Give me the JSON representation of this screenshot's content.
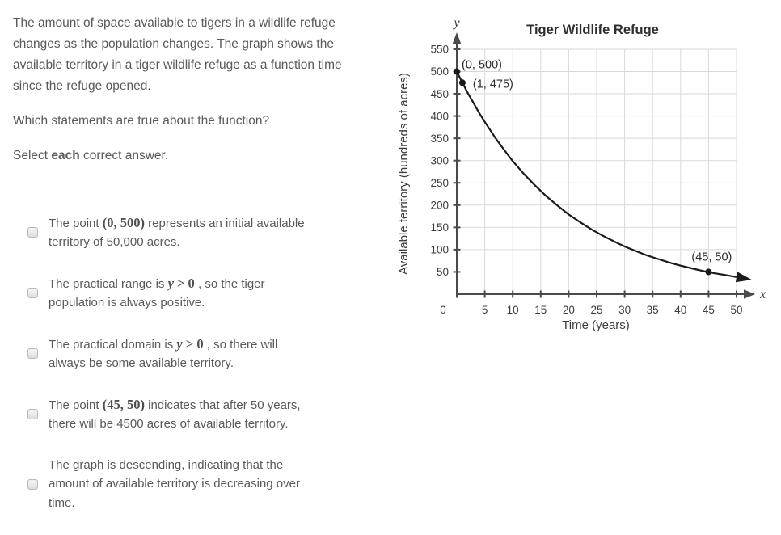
{
  "question": {
    "intro": "The amount of space available to tigers in a wildlife refuge changes as the population changes. The graph shows the available territory in a tiger wildlife refuge as a function time since the refuge opened.",
    "prompt": "Which statements are true about the function?",
    "select_prefix": "Select ",
    "select_bold": "each",
    "select_suffix": " correct answer."
  },
  "options": [
    {
      "pre": "The point ",
      "math": "(0, 500)",
      "post": " represents an initial available territory of 50,000 acres.",
      "checked": false
    },
    {
      "pre": "The practical range is ",
      "math_var": "y",
      "math_rest": " > 0",
      "post": " , so the tiger population is always positive.",
      "checked": false
    },
    {
      "pre": "The practical domain is ",
      "math_var": "y",
      "math_rest": " > 0",
      "post": " , so there will always be some available territory.",
      "checked": false
    },
    {
      "pre": "The point ",
      "math": "(45, 50)",
      "post": " indicates that after 50 years, there will be 4500 acres of available territory.",
      "checked": false
    },
    {
      "pre": "The graph is descending, indicating that the amount of available territory is decreasing over time.",
      "checked": false
    }
  ],
  "chart_data": {
    "type": "line",
    "title": "Tiger Wildlife Refuge",
    "xlabel": "Time (years)",
    "ylabel": "Available territory (hundreds of acres)",
    "x_axis_letter": "x",
    "y_axis_letter": "y",
    "xlim": [
      0,
      50
    ],
    "ylim": [
      0,
      550
    ],
    "x_ticks": [
      0,
      5,
      10,
      15,
      20,
      25,
      30,
      35,
      40,
      45,
      50
    ],
    "y_ticks": [
      50,
      100,
      150,
      200,
      250,
      300,
      350,
      400,
      450,
      500,
      550
    ],
    "grid": true,
    "legend": false,
    "series": [
      {
        "name": "available territory",
        "rule": "y = 500·(0.95)^x",
        "samples": [
          [
            0,
            500
          ],
          [
            1,
            475
          ],
          [
            2,
            451
          ],
          [
            3,
            429
          ],
          [
            4,
            407
          ],
          [
            5,
            387
          ],
          [
            6,
            368
          ],
          [
            7,
            349
          ],
          [
            8,
            332
          ],
          [
            9,
            315
          ],
          [
            10,
            299
          ],
          [
            12,
            270
          ],
          [
            14,
            244
          ],
          [
            16,
            220
          ],
          [
            18,
            199
          ],
          [
            20,
            179
          ],
          [
            22,
            162
          ],
          [
            24,
            146
          ],
          [
            26,
            132
          ],
          [
            28,
            119
          ],
          [
            30,
            107
          ],
          [
            32,
            97
          ],
          [
            34,
            87
          ],
          [
            36,
            79
          ],
          [
            38,
            71
          ],
          [
            40,
            64
          ],
          [
            42,
            58
          ],
          [
            44,
            52
          ],
          [
            46,
            47
          ],
          [
            48,
            43
          ],
          [
            50,
            38.5
          ]
        ]
      }
    ],
    "marked_points": [
      {
        "x": 0,
        "y": 500,
        "label": "(0, 500)"
      },
      {
        "x": 1,
        "y": 475,
        "label": "(1, 475)"
      },
      {
        "x": 45,
        "y": 50,
        "label": "(45, 50)"
      }
    ],
    "colors": {
      "curve": "#1a1a1a",
      "grid": "#d9d9d9",
      "axis": "#4a4a4a",
      "text": "#3d3d3d",
      "title": "#2e2e2e"
    }
  }
}
